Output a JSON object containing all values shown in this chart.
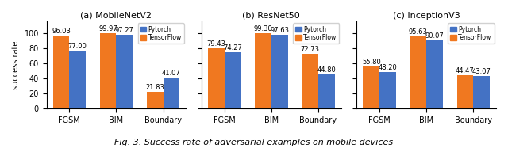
{
  "subplots": [
    {
      "title": "(a) MobileNetV2",
      "categories": [
        "FGSM",
        "BIM",
        "Boundary"
      ],
      "pytorch": [
        77.0,
        97.27,
        41.07
      ],
      "tensorflow": [
        96.03,
        99.97,
        21.83
      ]
    },
    {
      "title": "(b) ResNet50",
      "categories": [
        "FGSM",
        "BIM",
        "Boundary"
      ],
      "pytorch": [
        74.27,
        97.63,
        44.8
      ],
      "tensorflow": [
        79.43,
        99.3,
        72.73
      ]
    },
    {
      "title": "(c) InceptionV3",
      "categories": [
        "FGSM",
        "BIM",
        "Boundary"
      ],
      "pytorch": [
        48.2,
        90.07,
        43.07
      ],
      "tensorflow": [
        55.8,
        95.63,
        44.47
      ]
    }
  ],
  "ylabel": "success rate",
  "pytorch_color": "#4472c4",
  "tensorflow_color": "#f07820",
  "bar_width": 0.35,
  "ylim": [
    0,
    115
  ],
  "yticks": [
    0,
    20,
    40,
    60,
    80,
    100
  ],
  "caption": "Fig. 3. Success rate of adversarial examples on mobile devices",
  "fontsize_title": 8,
  "fontsize_label": 7,
  "fontsize_bar": 6.0,
  "fontsize_caption": 8
}
